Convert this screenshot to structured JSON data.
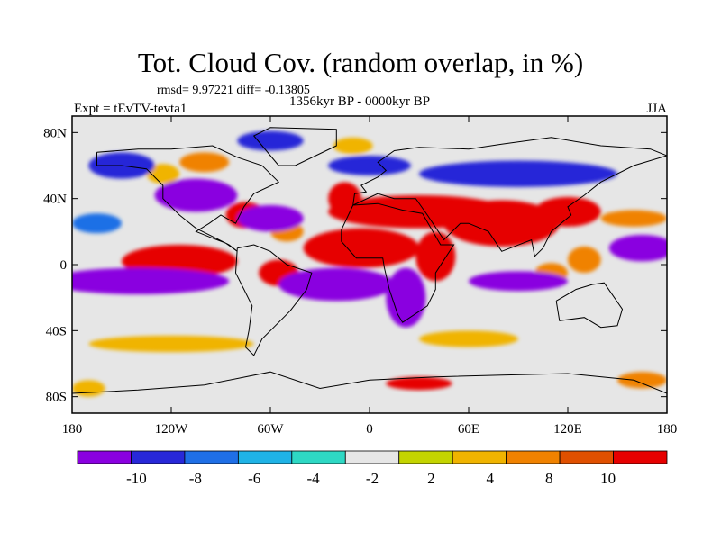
{
  "title": "Tot. Cloud Cov. (random overlap, in %)",
  "stats": "rmsd= 9.97221 diff= -0.13805",
  "period": "1356kyr BP - 0000kyr BP",
  "experiment": "Expt = tEvTV-tevta1",
  "season": "JJA",
  "map": {
    "lon_range": [
      -180,
      180
    ],
    "lat_range": [
      -90,
      90
    ],
    "x_ticks": [
      {
        "value": -180,
        "label": "180"
      },
      {
        "value": -120,
        "label": "120W"
      },
      {
        "value": -60,
        "label": "60W"
      },
      {
        "value": 0,
        "label": "0"
      },
      {
        "value": 60,
        "label": "60E"
      },
      {
        "value": 120,
        "label": "120E"
      },
      {
        "value": 180,
        "label": "180"
      }
    ],
    "y_ticks": [
      {
        "value": 80,
        "label": "80N"
      },
      {
        "value": 40,
        "label": "40N"
      },
      {
        "value": 0,
        "label": "0"
      },
      {
        "value": -40,
        "label": "40S"
      },
      {
        "value": -80,
        "label": "80S"
      }
    ]
  },
  "colorbar": {
    "colors": [
      "#8a00e0",
      "#2828d8",
      "#1f6fe6",
      "#1fb3e6",
      "#2ed8c4",
      "#e6e6e6",
      "#c4d400",
      "#f0b400",
      "#f08200",
      "#e05000",
      "#e60000"
    ],
    "labels": [
      "-10",
      "-8",
      "-6",
      "-4",
      "-2",
      "2",
      "4",
      "8",
      "10"
    ]
  },
  "anomaly_regions": [
    {
      "lon": 30,
      "lat": 32,
      "rx": 55,
      "ry": 10,
      "level": 10
    },
    {
      "lon": 80,
      "lat": 25,
      "rx": 35,
      "ry": 14,
      "level": 10
    },
    {
      "lon": 120,
      "lat": 32,
      "rx": 20,
      "ry": 9,
      "level": 10
    },
    {
      "lon": -5,
      "lat": 10,
      "rx": 35,
      "ry": 12,
      "level": 10
    },
    {
      "lon": 40,
      "lat": 5,
      "rx": 12,
      "ry": 15,
      "level": 10
    },
    {
      "lon": -15,
      "lat": 40,
      "rx": 10,
      "ry": 10,
      "level": 10
    },
    {
      "lon": -115,
      "lat": 2,
      "rx": 35,
      "ry": 10,
      "level": 10
    },
    {
      "lon": -55,
      "lat": -5,
      "rx": 12,
      "ry": 8,
      "level": 10
    },
    {
      "lon": -75,
      "lat": 30,
      "rx": 12,
      "ry": 8,
      "level": 10
    },
    {
      "lon": -50,
      "lat": 20,
      "rx": 10,
      "ry": 6,
      "level": 8
    },
    {
      "lon": 110,
      "lat": -5,
      "rx": 10,
      "ry": 6,
      "level": 8
    },
    {
      "lon": 130,
      "lat": 3,
      "rx": 10,
      "ry": 8,
      "level": 8
    },
    {
      "lon": -10,
      "lat": 72,
      "rx": 12,
      "ry": 5,
      "level": 4
    },
    {
      "lon": 30,
      "lat": -72,
      "rx": 20,
      "ry": 4,
      "level": 10
    },
    {
      "lon": -100,
      "lat": 62,
      "rx": 15,
      "ry": 6,
      "level": 8
    },
    {
      "lon": 160,
      "lat": 28,
      "rx": 20,
      "ry": 5,
      "level": 8
    },
    {
      "lon": -125,
      "lat": 55,
      "rx": 10,
      "ry": 6,
      "level": 4
    },
    {
      "lon": -150,
      "lat": 60,
      "rx": 20,
      "ry": 8,
      "level": -8
    },
    {
      "lon": -105,
      "lat": 42,
      "rx": 25,
      "ry": 10,
      "level": -10
    },
    {
      "lon": -60,
      "lat": 28,
      "rx": 20,
      "ry": 8,
      "level": -10
    },
    {
      "lon": -140,
      "lat": -10,
      "rx": 55,
      "ry": 8,
      "level": -10
    },
    {
      "lon": -20,
      "lat": -12,
      "rx": 35,
      "ry": 10,
      "level": -10
    },
    {
      "lon": 22,
      "lat": -20,
      "rx": 12,
      "ry": 18,
      "level": -10
    },
    {
      "lon": 90,
      "lat": -10,
      "rx": 30,
      "ry": 6,
      "level": -10
    },
    {
      "lon": 165,
      "lat": 10,
      "rx": 20,
      "ry": 8,
      "level": -10
    },
    {
      "lon": 90,
      "lat": 55,
      "rx": 60,
      "ry": 8,
      "level": -8
    },
    {
      "lon": 0,
      "lat": 60,
      "rx": 25,
      "ry": 6,
      "level": -8
    },
    {
      "lon": -60,
      "lat": 75,
      "rx": 20,
      "ry": 6,
      "level": -8
    },
    {
      "lon": -165,
      "lat": 25,
      "rx": 15,
      "ry": 6,
      "level": -6
    },
    {
      "lon": -120,
      "lat": -48,
      "rx": 50,
      "ry": 5,
      "level": 4
    },
    {
      "lon": 60,
      "lat": -45,
      "rx": 30,
      "ry": 5,
      "level": 4
    },
    {
      "lon": -170,
      "lat": -75,
      "rx": 10,
      "ry": 5,
      "level": 4
    },
    {
      "lon": 165,
      "lat": -70,
      "rx": 15,
      "ry": 5,
      "level": 8
    }
  ],
  "land_outlines": [
    [
      [
        -165,
        68
      ],
      [
        -140,
        70
      ],
      [
        -120,
        70
      ],
      [
        -95,
        72
      ],
      [
        -80,
        65
      ],
      [
        -65,
        60
      ],
      [
        -55,
        50
      ],
      [
        -70,
        43
      ],
      [
        -76,
        35
      ],
      [
        -81,
        25
      ],
      [
        -90,
        30
      ],
      [
        -97,
        25
      ],
      [
        -105,
        20
      ],
      [
        -95,
        16
      ],
      [
        -87,
        13
      ],
      [
        -80,
        8
      ],
      [
        -85,
        12
      ],
      [
        -105,
        22
      ],
      [
        -115,
        30
      ],
      [
        -125,
        40
      ],
      [
        -125,
        48
      ],
      [
        -135,
        58
      ],
      [
        -150,
        60
      ],
      [
        -165,
        60
      ],
      [
        -165,
        68
      ]
    ],
    [
      [
        -80,
        10
      ],
      [
        -70,
        12
      ],
      [
        -60,
        8
      ],
      [
        -50,
        0
      ],
      [
        -35,
        -5
      ],
      [
        -38,
        -15
      ],
      [
        -48,
        -28
      ],
      [
        -58,
        -38
      ],
      [
        -65,
        -45
      ],
      [
        -70,
        -55
      ],
      [
        -75,
        -50
      ],
      [
        -73,
        -40
      ],
      [
        -71,
        -25
      ],
      [
        -76,
        -15
      ],
      [
        -81,
        -5
      ],
      [
        -80,
        10
      ]
    ],
    [
      [
        -55,
        60
      ],
      [
        -45,
        60
      ],
      [
        -20,
        72
      ],
      [
        -20,
        82
      ],
      [
        -60,
        83
      ],
      [
        -70,
        78
      ],
      [
        -55,
        60
      ]
    ],
    [
      [
        -10,
        36
      ],
      [
        5,
        37
      ],
      [
        20,
        33
      ],
      [
        32,
        31
      ],
      [
        43,
        12
      ],
      [
        51,
        12
      ],
      [
        40,
        -5
      ],
      [
        40,
        -15
      ],
      [
        35,
        -25
      ],
      [
        20,
        -35
      ],
      [
        17,
        -30
      ],
      [
        12,
        -15
      ],
      [
        9,
        -2
      ],
      [
        8,
        4
      ],
      [
        -8,
        4
      ],
      [
        -17,
        14
      ],
      [
        -17,
        21
      ],
      [
        -10,
        36
      ]
    ],
    [
      [
        -10,
        36
      ],
      [
        -9,
        43
      ],
      [
        -2,
        44
      ],
      [
        -5,
        48
      ],
      [
        5,
        53
      ],
      [
        10,
        57
      ],
      [
        5,
        62
      ],
      [
        15,
        69
      ],
      [
        30,
        71
      ],
      [
        60,
        70
      ],
      [
        80,
        73
      ],
      [
        110,
        77
      ],
      [
        140,
        72
      ],
      [
        170,
        70
      ],
      [
        180,
        66
      ],
      [
        160,
        60
      ],
      [
        140,
        50
      ],
      [
        130,
        42
      ],
      [
        120,
        35
      ],
      [
        122,
        30
      ],
      [
        110,
        20
      ],
      [
        105,
        10
      ],
      [
        100,
        5
      ],
      [
        98,
        15
      ],
      [
        80,
        8
      ],
      [
        72,
        20
      ],
      [
        60,
        25
      ],
      [
        55,
        25
      ],
      [
        45,
        15
      ],
      [
        35,
        30
      ],
      [
        28,
        40
      ],
      [
        15,
        40
      ],
      [
        5,
        43
      ],
      [
        -10,
        36
      ]
    ],
    [
      [
        113,
        -22
      ],
      [
        125,
        -15
      ],
      [
        135,
        -12
      ],
      [
        142,
        -11
      ],
      [
        153,
        -27
      ],
      [
        150,
        -37
      ],
      [
        140,
        -38
      ],
      [
        130,
        -32
      ],
      [
        115,
        -34
      ],
      [
        113,
        -22
      ]
    ],
    [
      [
        -180,
        -78
      ],
      [
        -140,
        -76
      ],
      [
        -100,
        -73
      ],
      [
        -60,
        -65
      ],
      [
        -30,
        -75
      ],
      [
        0,
        -70
      ],
      [
        40,
        -68
      ],
      [
        80,
        -67
      ],
      [
        120,
        -66
      ],
      [
        160,
        -70
      ],
      [
        180,
        -78
      ]
    ]
  ]
}
